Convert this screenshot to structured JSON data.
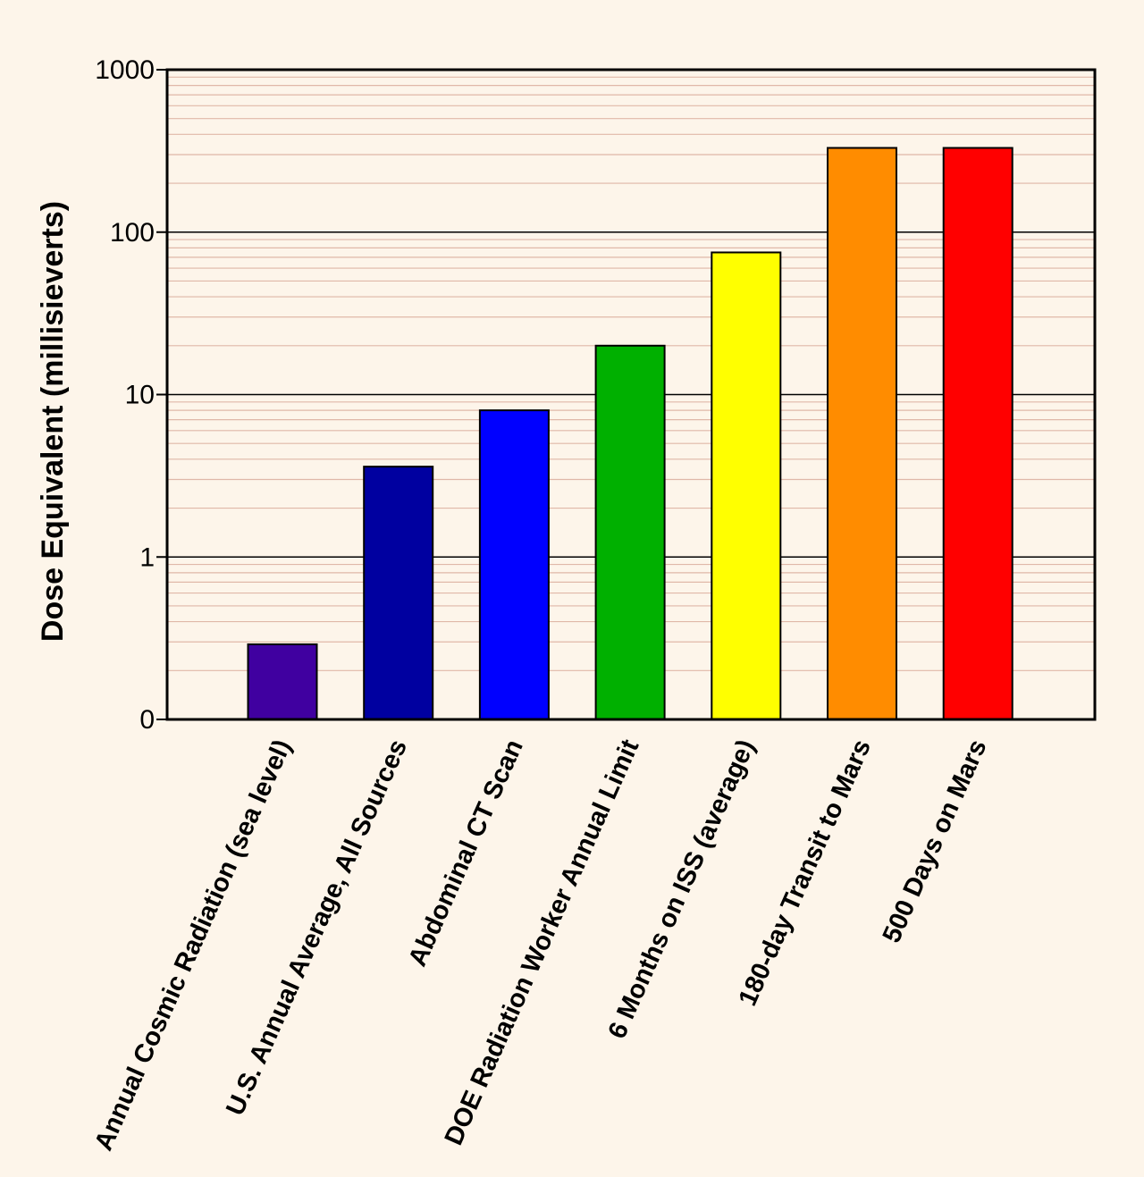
{
  "chart_data": {
    "type": "bar",
    "title": "",
    "xlabel": "",
    "ylabel": "Dose Equivalent (millisieverts)",
    "yscale": "log",
    "ylim": [
      0.1,
      1000
    ],
    "yticks": [
      {
        "value": 0.1,
        "label": "0"
      },
      {
        "value": 1,
        "label": "1"
      },
      {
        "value": 10,
        "label": "10"
      },
      {
        "value": 100,
        "label": "100"
      },
      {
        "value": 1000,
        "label": "1000"
      }
    ],
    "grid": true,
    "categories": [
      "Annual Cosmic Radiation (sea level)",
      "U.S. Annual Average, All Sources",
      "Abdominal CT Scan",
      "DOE Radiation Worker Annual Limit",
      "6 Months on ISS (average)",
      "180-day Transit to Mars",
      "500 Days on Mars"
    ],
    "values": [
      0.29,
      3.6,
      8,
      20,
      75,
      330,
      330
    ],
    "colors": [
      "#4000a0",
      "#0000a0",
      "#0000ff",
      "#00b000",
      "#ffff00",
      "#ff8c00",
      "#ff0000"
    ]
  },
  "style": {
    "background": "#fdf5ea",
    "major_grid_color": "#000000",
    "minor_grid_color": "#e0b8a8",
    "bar_edge_color": "#000000"
  }
}
